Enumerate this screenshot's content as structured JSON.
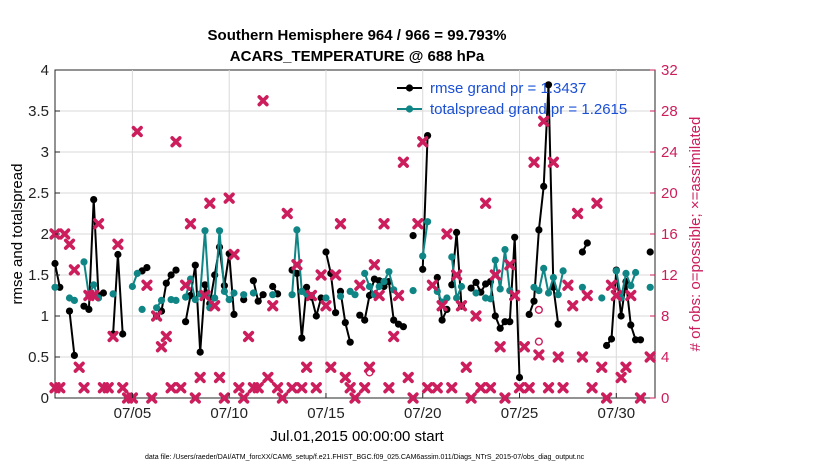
{
  "chart_data": {
    "type": "line",
    "title": "Southern Hemisphere 964 / 966 = 99.793%",
    "subtitle": "ACARS_TEMPERATURE @ 688 hPa",
    "xlabel": "Jul.01,2015 00:00:00 start",
    "ylabel": "rmse and totalspread",
    "ylabel_right": "# of obs: o=possible; ×=assimilated",
    "xlim": [
      1,
      32
    ],
    "ylim": [
      0,
      4
    ],
    "ylim_right": [
      0,
      32
    ],
    "x_ticks": [
      5,
      10,
      15,
      20,
      25,
      30
    ],
    "x_tick_labels": [
      "07/05",
      "07/10",
      "07/15",
      "07/20",
      "07/25",
      "07/30"
    ],
    "y_ticks": [
      "0",
      "0.5",
      "1",
      "1.5",
      "2",
      "2.5",
      "3",
      "3.5",
      "4"
    ],
    "y_ticks_right": [
      "0",
      "4",
      "8",
      "12",
      "16",
      "20",
      "24",
      "28",
      "32"
    ],
    "footer": "data file: /Users/raeder/DAI/ATM_forcXX/CAM6_setup/f.e21.FHIST_BGC.f09_025.CAM6assim.011/Diags_NTrS_2015-07/obs_diag_output.nc",
    "colors": {
      "rmse": "#000000",
      "spread": "#0f8585",
      "obs": "#cc1d5c",
      "legend_text": "#1a4fd6"
    },
    "series": [
      {
        "name": "rmse grand pr = 1.3437",
        "segments": [
          [
            [
              1.0,
              1.64
            ],
            [
              1.25,
              1.35
            ]
          ],
          [
            [
              1.75,
              1.06
            ],
            [
              2.0,
              0.52
            ]
          ],
          [
            [
              2.5,
              1.12
            ],
            [
              2.75,
              1.08
            ],
            [
              3.0,
              2.42
            ],
            [
              3.25,
              1.25
            ],
            [
              3.5,
              1.28
            ]
          ],
          [
            [
              4.0,
              0.78
            ],
            [
              4.25,
              1.75
            ],
            [
              4.5,
              0.78
            ]
          ],
          [
            [
              5.5,
              1.55
            ],
            [
              5.75,
              1.59
            ]
          ],
          [
            [
              6.25,
              1.0
            ],
            [
              6.5,
              1.06
            ],
            [
              6.75,
              1.4
            ],
            [
              7.0,
              1.5
            ],
            [
              7.25,
              1.56
            ]
          ],
          [
            [
              7.75,
              0.93
            ],
            [
              8.0,
              1.25
            ],
            [
              8.25,
              1.62
            ],
            [
              8.5,
              0.56
            ],
            [
              8.75,
              1.38
            ],
            [
              9.0,
              1.15
            ],
            [
              9.25,
              1.5
            ],
            [
              9.5,
              1.84
            ],
            [
              9.75,
              1.37
            ],
            [
              10.0,
              1.76
            ],
            [
              10.25,
              1.02
            ]
          ],
          [
            [
              10.75,
              1.2
            ]
          ],
          [
            [
              11.25,
              1.43
            ],
            [
              11.5,
              1.18
            ],
            [
              11.75,
              1.26
            ]
          ],
          [
            [
              12.25,
              1.36
            ],
            [
              12.5,
              1.27
            ]
          ],
          [
            [
              13.25,
              1.56
            ],
            [
              13.5,
              1.52
            ],
            [
              13.75,
              0.73
            ],
            [
              14.0,
              1.35
            ],
            [
              14.25,
              1.23
            ],
            [
              14.5,
              1.0
            ],
            [
              14.75,
              1.22
            ]
          ],
          [
            [
              15.0,
              1.78
            ],
            [
              15.25,
              1.52
            ],
            [
              15.5,
              1.04
            ]
          ],
          [
            [
              15.75,
              1.3
            ],
            [
              16.0,
              0.92
            ],
            [
              16.25,
              0.68
            ]
          ],
          [
            [
              16.75,
              1.01
            ],
            [
              17.0,
              0.95
            ],
            [
              17.25,
              1.25
            ],
            [
              17.5,
              1.45
            ],
            [
              17.75,
              1.43
            ],
            [
              18.0,
              1.36
            ],
            [
              18.25,
              1.42
            ],
            [
              18.5,
              0.95
            ],
            [
              18.75,
              0.9
            ],
            [
              19.0,
              0.87
            ]
          ],
          [
            [
              19.5,
              1.98
            ]
          ],
          [
            [
              20.0,
              1.57
            ],
            [
              20.25,
              3.2
            ]
          ],
          [
            [
              20.75,
              1.47
            ],
            [
              21.0,
              0.95
            ],
            [
              21.25,
              1.08
            ]
          ],
          [
            [
              21.5,
              1.38
            ],
            [
              21.75,
              2.02
            ],
            [
              22.0,
              1.12
            ]
          ],
          [
            [
              22.5,
              1.34
            ],
            [
              22.75,
              1.41
            ],
            [
              23.0,
              1.29
            ],
            [
              23.25,
              1.39
            ],
            [
              23.5,
              1.42
            ],
            [
              23.75,
              1.0
            ],
            [
              24.0,
              0.85
            ],
            [
              24.25,
              0.93
            ],
            [
              24.5,
              0.93
            ],
            [
              24.75,
              1.96
            ],
            [
              25.0,
              0.25
            ]
          ],
          [
            [
              25.5,
              1.02
            ],
            [
              25.75,
              1.18
            ],
            [
              26.0,
              2.05
            ],
            [
              26.25,
              2.58
            ],
            [
              26.5,
              3.82
            ],
            [
              26.75,
              1.35
            ],
            [
              27.0,
              0.9
            ]
          ],
          [
            [
              28.25,
              1.78
            ],
            [
              28.5,
              1.89
            ]
          ],
          [
            [
              29.5,
              0.64
            ],
            [
              29.75,
              0.72
            ],
            [
              30.0,
              1.56
            ],
            [
              30.25,
              1.0
            ],
            [
              30.5,
              1.42
            ],
            [
              30.75,
              0.89
            ],
            [
              31.0,
              0.71
            ],
            [
              31.25,
              0.71
            ]
          ],
          [
            [
              31.75,
              1.78
            ]
          ]
        ]
      },
      {
        "name": "totalspread grand pr = 1.2615",
        "segments": [
          [
            [
              1.0,
              1.35
            ]
          ],
          [
            [
              1.75,
              1.22
            ],
            [
              2.0,
              1.19
            ]
          ],
          [
            [
              2.5,
              1.66
            ],
            [
              2.75,
              1.25
            ],
            [
              3.0,
              1.38
            ],
            [
              3.25,
              1.22
            ]
          ],
          [
            [
              4.0,
              1.27
            ]
          ],
          [
            [
              5.0,
              1.36
            ],
            [
              5.25,
              1.52
            ]
          ],
          [
            [
              5.5,
              1.08
            ]
          ],
          [
            [
              6.25,
              1.1
            ],
            [
              6.5,
              1.19
            ]
          ],
          [
            [
              7.0,
              1.2
            ],
            [
              7.25,
              1.19
            ]
          ],
          [
            [
              7.75,
              1.23
            ],
            [
              8.0,
              1.45
            ],
            [
              8.25,
              1.2
            ],
            [
              8.5,
              1.27
            ],
            [
              8.75,
              2.04
            ],
            [
              9.0,
              1.1
            ],
            [
              9.25,
              1.22
            ],
            [
              9.5,
              2.04
            ],
            [
              9.75,
              1.3
            ],
            [
              10.0,
              1.2
            ],
            [
              10.25,
              1.28
            ]
          ],
          [
            [
              10.75,
              1.26
            ]
          ],
          [
            [
              11.25,
              1.28
            ]
          ],
          [
            [
              12.25,
              1.26
            ]
          ],
          [
            [
              13.25,
              1.26
            ],
            [
              13.5,
              2.05
            ],
            [
              13.75,
              1.3
            ],
            [
              14.0,
              1.27
            ],
            [
              14.25,
              1.25
            ]
          ],
          [
            [
              15.0,
              1.22
            ]
          ],
          [
            [
              15.75,
              1.24
            ]
          ],
          [
            [
              16.25,
              1.3
            ],
            [
              16.5,
              1.26
            ]
          ],
          [
            [
              17.0,
              1.52
            ],
            [
              17.25,
              1.36
            ],
            [
              17.5,
              1.26
            ],
            [
              17.75,
              1.36
            ],
            [
              18.0,
              1.42
            ],
            [
              18.25,
              1.54
            ],
            [
              18.5,
              1.32
            ]
          ],
          [
            [
              19.5,
              1.31
            ]
          ],
          [
            [
              20.0,
              1.73
            ],
            [
              20.25,
              2.15
            ]
          ],
          [
            [
              20.75,
              1.3
            ],
            [
              21.0,
              1.17
            ],
            [
              21.25,
              1.22
            ]
          ],
          [
            [
              21.5,
              1.72
            ],
            [
              21.75,
              1.22
            ],
            [
              22.0,
              1.36
            ]
          ],
          [
            [
              22.75,
              1.28
            ]
          ],
          [
            [
              23.25,
              1.22
            ],
            [
              23.5,
              1.21
            ],
            [
              23.75,
              1.68
            ],
            [
              24.0,
              1.33
            ],
            [
              24.25,
              1.81
            ],
            [
              24.5,
              1.31
            ]
          ],
          [
            [
              25.75,
              1.35
            ],
            [
              26.0,
              1.31
            ],
            [
              26.25,
              1.58
            ],
            [
              26.5,
              1.28
            ],
            [
              26.75,
              1.47
            ],
            [
              27.0,
              1.26
            ],
            [
              27.25,
              1.55
            ]
          ],
          [
            [
              28.25,
              1.35
            ]
          ],
          [
            [
              29.25,
              1.22
            ]
          ],
          [
            [
              30.0,
              1.55
            ],
            [
              30.25,
              1.22
            ],
            [
              30.5,
              1.52
            ],
            [
              30.75,
              1.37
            ],
            [
              31.0,
              1.53
            ]
          ],
          [
            [
              31.75,
              1.35
            ]
          ]
        ]
      }
    ],
    "obs_possible": [
      [
        17.25,
        2.5
      ],
      [
        26.0,
        8.6
      ],
      [
        26.0,
        5.5
      ]
    ],
    "obs_assimilated": [
      [
        1.0,
        1
      ],
      [
        1.25,
        1
      ],
      [
        1.0,
        16
      ],
      [
        1.5,
        16
      ],
      [
        1.75,
        15
      ],
      [
        2.0,
        12.5
      ],
      [
        2.25,
        3
      ],
      [
        2.5,
        1
      ],
      [
        2.75,
        10
      ],
      [
        3.0,
        10
      ],
      [
        3.25,
        17
      ],
      [
        3.5,
        1
      ],
      [
        3.75,
        1
      ],
      [
        4.0,
        6
      ],
      [
        4.25,
        15
      ],
      [
        4.5,
        1
      ],
      [
        4.75,
        0
      ],
      [
        5.0,
        0
      ],
      [
        5.25,
        26
      ],
      [
        5.75,
        11
      ],
      [
        6.0,
        0
      ],
      [
        6.25,
        8
      ],
      [
        6.5,
        5
      ],
      [
        6.75,
        6
      ],
      [
        7.0,
        1
      ],
      [
        7.25,
        25
      ],
      [
        7.5,
        1
      ],
      [
        7.75,
        11
      ],
      [
        8.0,
        17
      ],
      [
        8.25,
        0
      ],
      [
        8.5,
        2
      ],
      [
        8.75,
        10
      ],
      [
        9.0,
        19
      ],
      [
        9.25,
        9
      ],
      [
        9.5,
        2
      ],
      [
        9.75,
        0
      ],
      [
        10.0,
        19.5
      ],
      [
        10.25,
        14
      ],
      [
        10.5,
        1
      ],
      [
        10.75,
        0
      ],
      [
        11.0,
        6
      ],
      [
        11.25,
        1
      ],
      [
        11.5,
        1
      ],
      [
        11.75,
        29
      ],
      [
        12.0,
        2
      ],
      [
        12.25,
        9
      ],
      [
        12.5,
        1
      ],
      [
        12.75,
        0
      ],
      [
        13.0,
        18
      ],
      [
        13.25,
        1
      ],
      [
        13.5,
        13
      ],
      [
        13.75,
        1
      ],
      [
        14.0,
        3
      ],
      [
        14.25,
        10
      ],
      [
        14.5,
        1
      ],
      [
        14.75,
        12
      ],
      [
        15.0,
        9
      ],
      [
        15.25,
        3
      ],
      [
        15.5,
        12
      ],
      [
        15.75,
        17
      ],
      [
        16.0,
        2
      ],
      [
        16.25,
        1
      ],
      [
        16.5,
        0
      ],
      [
        16.75,
        11
      ],
      [
        17.0,
        1
      ],
      [
        17.25,
        3
      ],
      [
        17.5,
        13
      ],
      [
        17.75,
        10
      ],
      [
        18.0,
        17
      ],
      [
        18.25,
        1
      ],
      [
        18.5,
        6
      ],
      [
        18.75,
        10
      ],
      [
        19.0,
        23
      ],
      [
        19.25,
        2
      ],
      [
        19.5,
        0
      ],
      [
        19.75,
        17
      ],
      [
        20.0,
        25
      ],
      [
        20.25,
        1
      ],
      [
        20.5,
        11
      ],
      [
        20.75,
        1
      ],
      [
        21.0,
        9
      ],
      [
        21.25,
        16
      ],
      [
        21.5,
        1
      ],
      [
        21.75,
        12
      ],
      [
        22.0,
        9
      ],
      [
        22.25,
        3
      ],
      [
        22.5,
        0
      ],
      [
        22.75,
        8
      ],
      [
        23.0,
        1
      ],
      [
        23.25,
        19
      ],
      [
        23.5,
        1
      ],
      [
        23.75,
        12
      ],
      [
        24.0,
        5
      ],
      [
        24.25,
        0
      ],
      [
        24.5,
        13
      ],
      [
        24.75,
        10
      ],
      [
        25.0,
        1
      ],
      [
        25.25,
        5
      ],
      [
        25.5,
        1
      ],
      [
        25.75,
        23
      ],
      [
        26.0,
        4.2
      ],
      [
        26.25,
        27
      ],
      [
        26.5,
        1
      ],
      [
        26.75,
        23
      ],
      [
        27.0,
        4
      ],
      [
        27.25,
        1
      ],
      [
        27.5,
        11
      ],
      [
        27.75,
        9
      ],
      [
        28.0,
        18
      ],
      [
        28.25,
        4
      ],
      [
        28.5,
        10
      ],
      [
        28.75,
        1
      ],
      [
        29.0,
        19
      ],
      [
        29.25,
        3
      ],
      [
        29.5,
        0
      ],
      [
        29.75,
        11
      ],
      [
        30.0,
        10
      ],
      [
        30.25,
        2
      ],
      [
        30.5,
        3
      ],
      [
        30.75,
        10
      ],
      [
        31.25,
        0
      ],
      [
        31.75,
        4
      ]
    ]
  }
}
